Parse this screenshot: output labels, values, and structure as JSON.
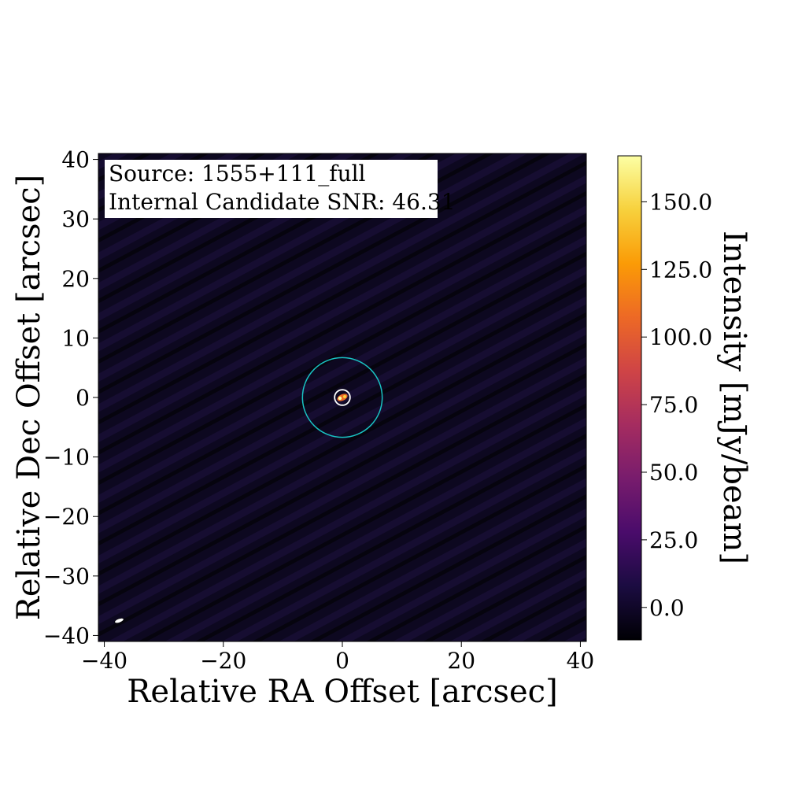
{
  "chart_data": {
    "type": "heatmap",
    "title": "",
    "xlabel": "Relative RA Offset [arcsec]",
    "ylabel": "Relative Dec Offset [arcsec]",
    "xlim": [
      -41,
      41
    ],
    "ylim": [
      -41,
      41
    ],
    "x_ticks": [
      -40,
      -20,
      0,
      20,
      40
    ],
    "y_ticks": [
      40,
      30,
      20,
      10,
      0,
      -10,
      -20,
      -30,
      -40
    ],
    "x_tick_labels": [
      "−40",
      "−20",
      "0",
      "20",
      "40"
    ],
    "y_tick_labels": [
      "40",
      "30",
      "20",
      "10",
      "0",
      "−10",
      "−20",
      "−30",
      "−40"
    ],
    "annotation": {
      "line1": "Source: 1555+111_full",
      "line2": "Internal Candidate SNR: 46.31"
    },
    "source_position": [
      0,
      0
    ],
    "outer_circle_radius": 6.7,
    "inner_circle_radius": 1.3,
    "beam_position": [
      -37.5,
      -37.5
    ],
    "colormap": "inferno",
    "colorbar": {
      "label": "Intensity [mJy/beam]",
      "vmin": -12,
      "vmax": 167,
      "ticks": [
        0.0,
        25.0,
        50.0,
        75.0,
        100.0,
        125.0,
        150.0
      ],
      "tick_labels": [
        "0.0",
        "25.0",
        "50.0",
        "75.0",
        "100.0",
        "125.0",
        "150.0"
      ]
    },
    "colors": {
      "background": "#0d0820",
      "outer_circle": "#19c3c3",
      "inner_circle": "#ffffff",
      "cmap_stops": [
        "#000004",
        "#1b0c41",
        "#4a0c6b",
        "#781c6d",
        "#a52c60",
        "#cf4446",
        "#ed6925",
        "#fb9b06",
        "#f7d13d",
        "#fcffa4"
      ]
    }
  }
}
